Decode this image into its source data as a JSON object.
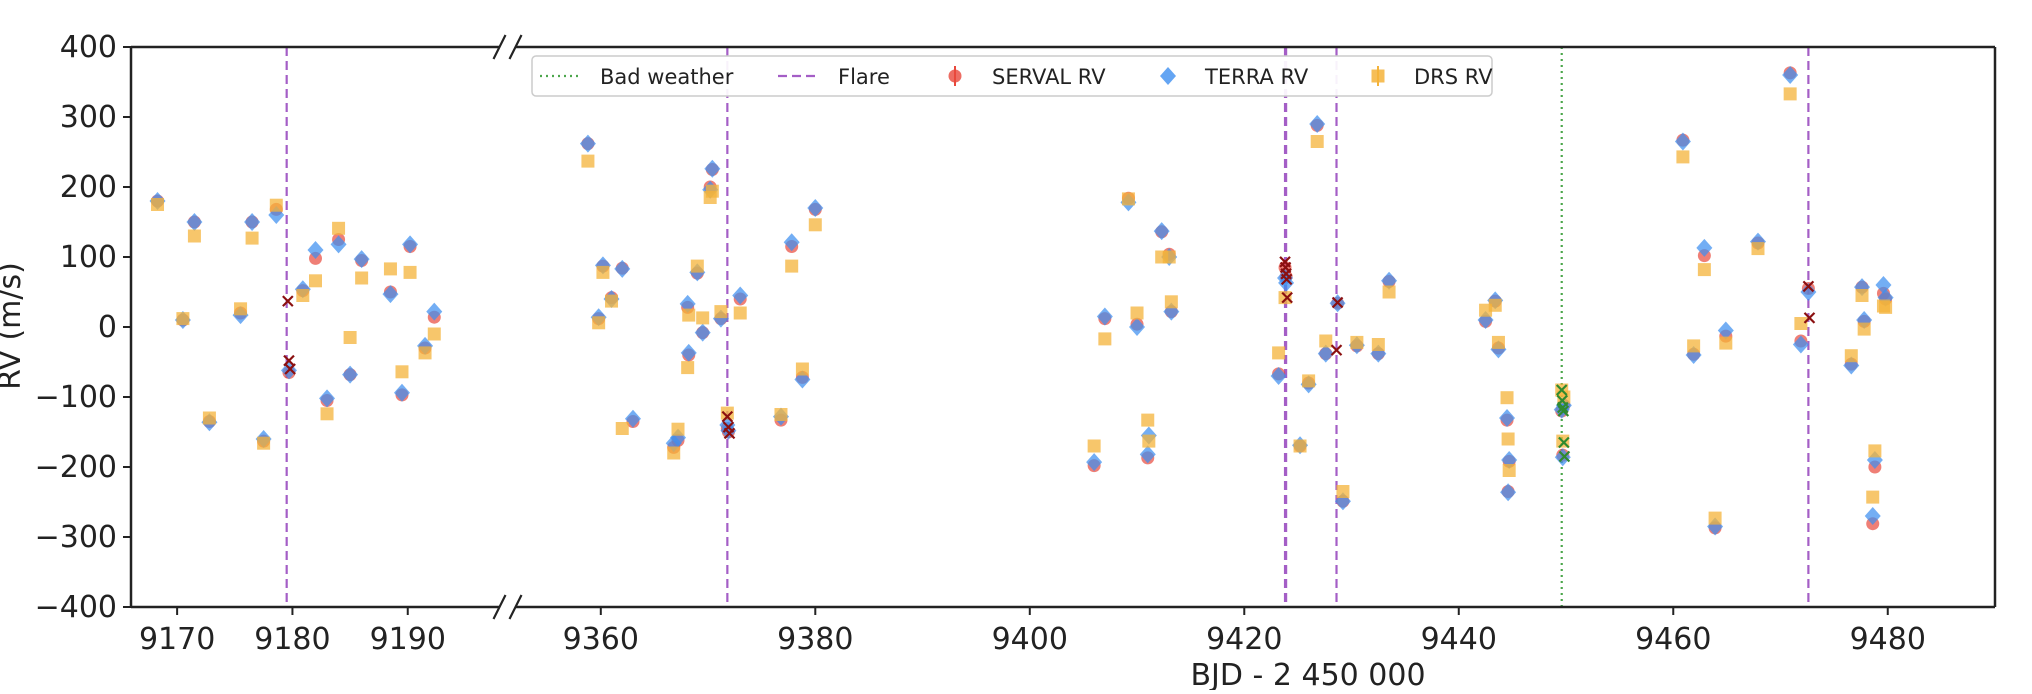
{
  "chart_data": {
    "type": "scatter",
    "xlabel": "BJD - 2 450 000",
    "ylabel": "RV (m/s)",
    "ylim": [
      -400,
      400
    ],
    "yticks": [
      -400,
      -300,
      -200,
      -100,
      0,
      100,
      200,
      300,
      400
    ],
    "ytick_labels": [
      "−400",
      "−300",
      "−200",
      "−100",
      "0",
      "100",
      "200",
      "300",
      "400"
    ],
    "broken_x_axis": true,
    "x_segments": [
      {
        "xlim": [
          9166,
          9198
        ],
        "ticks": [
          9170,
          9180,
          9190
        ]
      },
      {
        "xlim": [
          9352,
          9490
        ],
        "ticks": [
          9360,
          9380,
          9400,
          9420,
          9440,
          9460,
          9480
        ]
      }
    ],
    "legend": {
      "placement": "top-center",
      "entries": [
        {
          "label": "Bad weather",
          "style": "dotted-line",
          "color": "#4ca64c"
        },
        {
          "label": "Flare",
          "style": "dashed-line",
          "color": "#a45ec6"
        },
        {
          "label": "SERVAL RV",
          "style": "marker",
          "color": "#e8483c"
        },
        {
          "label": "TERRA RV",
          "style": "marker",
          "color": "#3d8ff0"
        },
        {
          "label": "DRS RV",
          "style": "marker",
          "color": "#f4b33a"
        }
      ]
    },
    "vlines": [
      {
        "x": 9179.5,
        "kind": "Flare"
      },
      {
        "x": 9371.8,
        "kind": "Flare"
      },
      {
        "x": 9423.8,
        "kind": "Flare"
      },
      {
        "x": 9423.9,
        "kind": "Flare"
      },
      {
        "x": 9428.6,
        "kind": "Flare"
      },
      {
        "x": 9472.6,
        "kind": "Flare"
      },
      {
        "x": 9449.6,
        "kind": "Bad weather"
      }
    ],
    "series": [
      {
        "name": "SERVAL RV",
        "color": "#e8483c",
        "points": [
          [
            9168.3,
            180
          ],
          [
            9170.5,
            10
          ],
          [
            9171.5,
            150
          ],
          [
            9172.8,
            -135
          ],
          [
            9175.5,
            20
          ],
          [
            9176.5,
            150
          ],
          [
            9177.5,
            -163
          ],
          [
            9178.6,
            168
          ],
          [
            9179.7,
            -65
          ],
          [
            9180.9,
            52
          ],
          [
            9182.0,
            98
          ],
          [
            9183.0,
            -105
          ],
          [
            9184.0,
            125
          ],
          [
            9185.0,
            -68
          ],
          [
            9186.0,
            95
          ],
          [
            9188.5,
            50
          ],
          [
            9189.5,
            -97
          ],
          [
            9190.2,
            115
          ],
          [
            9191.5,
            -30
          ],
          [
            9192.3,
            14
          ],
          [
            9358.8,
            262
          ],
          [
            9359.8,
            12
          ],
          [
            9360.2,
            87
          ],
          [
            9361.0,
            42
          ],
          [
            9362.0,
            84
          ],
          [
            9363.0,
            -135
          ],
          [
            9366.8,
            -172
          ],
          [
            9367.2,
            -162
          ],
          [
            9368.1,
            28
          ],
          [
            9368.2,
            -40
          ],
          [
            9369.0,
            77
          ],
          [
            9369.5,
            -8
          ],
          [
            9370.2,
            200
          ],
          [
            9370.4,
            225
          ],
          [
            9371.2,
            12
          ],
          [
            9371.8,
            -145
          ],
          [
            9371.9,
            -150
          ],
          [
            9373.0,
            40
          ],
          [
            9376.8,
            -133
          ],
          [
            9377.8,
            115
          ],
          [
            9378.8,
            -72
          ],
          [
            9380.0,
            168
          ],
          [
            9406.0,
            -198
          ],
          [
            9407.0,
            12
          ],
          [
            9409.2,
            184
          ],
          [
            9410.0,
            4
          ],
          [
            9411.0,
            -187
          ],
          [
            9412.3,
            136
          ],
          [
            9413.0,
            104
          ],
          [
            9413.2,
            22
          ],
          [
            9423.2,
            -67
          ],
          [
            9423.8,
            85
          ],
          [
            9423.9,
            72
          ],
          [
            9425.2,
            -170
          ],
          [
            9426.0,
            -80
          ],
          [
            9426.8,
            288
          ],
          [
            9427.6,
            -38
          ],
          [
            9428.7,
            34
          ],
          [
            9429.2,
            -249
          ],
          [
            9430.5,
            -27
          ],
          [
            9432.5,
            -38
          ],
          [
            9433.5,
            65
          ],
          [
            9442.5,
            8
          ],
          [
            9443.4,
            37
          ],
          [
            9443.7,
            -30
          ],
          [
            9444.5,
            -133
          ],
          [
            9444.6,
            -235
          ],
          [
            9444.7,
            -192
          ],
          [
            9449.6,
            -120
          ],
          [
            9449.7,
            -183
          ],
          [
            9449.8,
            -112
          ],
          [
            9460.9,
            267
          ],
          [
            9461.9,
            -39
          ],
          [
            9462.9,
            102
          ],
          [
            9463.9,
            -287
          ],
          [
            9464.9,
            -13
          ],
          [
            9467.9,
            120
          ],
          [
            9470.9,
            363
          ],
          [
            9471.9,
            -20
          ],
          [
            9472.6,
            55
          ],
          [
            9476.6,
            -53
          ],
          [
            9477.6,
            57
          ],
          [
            9477.8,
            8
          ],
          [
            9478.6,
            -281
          ],
          [
            9478.8,
            -200
          ],
          [
            9479.6,
            48
          ],
          [
            9479.8,
            40
          ]
        ]
      },
      {
        "name": "TERRA RV",
        "color": "#3d8ff0",
        "points": [
          [
            9168.3,
            180
          ],
          [
            9170.5,
            10
          ],
          [
            9171.5,
            150
          ],
          [
            9172.8,
            -136
          ],
          [
            9175.5,
            17
          ],
          [
            9176.5,
            150
          ],
          [
            9177.5,
            -160
          ],
          [
            9178.6,
            160
          ],
          [
            9179.7,
            -62
          ],
          [
            9180.9,
            54
          ],
          [
            9182.0,
            110
          ],
          [
            9183.0,
            -102
          ],
          [
            9184.0,
            118
          ],
          [
            9185.0,
            -68
          ],
          [
            9186.0,
            97
          ],
          [
            9188.5,
            47
          ],
          [
            9189.5,
            -94
          ],
          [
            9190.2,
            118
          ],
          [
            9191.5,
            -27
          ],
          [
            9192.3,
            22
          ],
          [
            9358.8,
            262
          ],
          [
            9359.8,
            14
          ],
          [
            9360.2,
            88
          ],
          [
            9361.0,
            40
          ],
          [
            9362.0,
            83
          ],
          [
            9363.0,
            -131
          ],
          [
            9366.8,
            -166
          ],
          [
            9367.2,
            -158
          ],
          [
            9368.1,
            33
          ],
          [
            9368.2,
            -37
          ],
          [
            9369.0,
            78
          ],
          [
            9369.5,
            -8
          ],
          [
            9370.2,
            196
          ],
          [
            9370.4,
            226
          ],
          [
            9371.2,
            12
          ],
          [
            9371.8,
            -140
          ],
          [
            9371.9,
            -148
          ],
          [
            9373.0,
            45
          ],
          [
            9376.8,
            -128
          ],
          [
            9377.8,
            121
          ],
          [
            9378.8,
            -75
          ],
          [
            9380.0,
            170
          ],
          [
            9406.0,
            -193
          ],
          [
            9407.0,
            15
          ],
          [
            9409.2,
            178
          ],
          [
            9410.0,
            0
          ],
          [
            9411.0,
            -182
          ],
          [
            9411.1,
            -155
          ],
          [
            9412.3,
            137
          ],
          [
            9413.0,
            100
          ],
          [
            9413.2,
            22
          ],
          [
            9423.2,
            -70
          ],
          [
            9423.8,
            70
          ],
          [
            9423.9,
            63
          ],
          [
            9425.2,
            -169
          ],
          [
            9426.0,
            -82
          ],
          [
            9426.8,
            290
          ],
          [
            9427.6,
            -38
          ],
          [
            9428.7,
            34
          ],
          [
            9429.2,
            -249
          ],
          [
            9430.5,
            -26
          ],
          [
            9432.5,
            -38
          ],
          [
            9433.5,
            66
          ],
          [
            9442.5,
            10
          ],
          [
            9443.4,
            38
          ],
          [
            9443.7,
            -32
          ],
          [
            9444.5,
            -130
          ],
          [
            9444.6,
            -236
          ],
          [
            9444.7,
            -190
          ],
          [
            9449.6,
            -118
          ],
          [
            9449.7,
            -186
          ],
          [
            9449.8,
            -112
          ],
          [
            9460.9,
            265
          ],
          [
            9461.9,
            -40
          ],
          [
            9462.9,
            113
          ],
          [
            9463.9,
            -285
          ],
          [
            9464.9,
            -5
          ],
          [
            9467.9,
            122
          ],
          [
            9470.9,
            360
          ],
          [
            9471.9,
            -25
          ],
          [
            9472.6,
            50
          ],
          [
            9476.6,
            -55
          ],
          [
            9477.6,
            57
          ],
          [
            9477.8,
            10
          ],
          [
            9478.6,
            -270
          ],
          [
            9478.8,
            -190
          ],
          [
            9479.6,
            60
          ],
          [
            9479.8,
            42
          ]
        ]
      },
      {
        "name": "DRS RV",
        "color": "#f4b33a",
        "points": [
          [
            9168.3,
            175
          ],
          [
            9170.5,
            12
          ],
          [
            9171.5,
            130
          ],
          [
            9172.8,
            -130
          ],
          [
            9175.5,
            26
          ],
          [
            9176.5,
            127
          ],
          [
            9177.5,
            -166
          ],
          [
            9178.6,
            174
          ],
          [
            9180.9,
            45
          ],
          [
            9182.0,
            66
          ],
          [
            9183.0,
            -124
          ],
          [
            9184.0,
            141
          ],
          [
            9185.0,
            -15
          ],
          [
            9186.0,
            70
          ],
          [
            9188.5,
            83
          ],
          [
            9189.5,
            -64
          ],
          [
            9190.2,
            78
          ],
          [
            9191.5,
            -37
          ],
          [
            9192.3,
            -10
          ],
          [
            9358.8,
            237
          ],
          [
            9359.8,
            6
          ],
          [
            9360.2,
            78
          ],
          [
            9361.0,
            37
          ],
          [
            9362.0,
            -145
          ],
          [
            9366.8,
            -180
          ],
          [
            9367.2,
            -146
          ],
          [
            9368.1,
            -58
          ],
          [
            9368.2,
            17
          ],
          [
            9369.0,
            87
          ],
          [
            9369.5,
            13
          ],
          [
            9370.2,
            185
          ],
          [
            9370.4,
            194
          ],
          [
            9371.2,
            22
          ],
          [
            9371.8,
            -123
          ],
          [
            9373.0,
            20
          ],
          [
            9376.8,
            -125
          ],
          [
            9377.8,
            87
          ],
          [
            9378.8,
            -60
          ],
          [
            9380.0,
            146
          ],
          [
            9406.0,
            -170
          ],
          [
            9407.0,
            -17
          ],
          [
            9409.2,
            183
          ],
          [
            9410.0,
            20
          ],
          [
            9411.0,
            -133
          ],
          [
            9411.1,
            -163
          ],
          [
            9412.3,
            100
          ],
          [
            9413.0,
            100
          ],
          [
            9413.2,
            36
          ],
          [
            9423.2,
            -37
          ],
          [
            9423.8,
            42
          ],
          [
            9425.2,
            -170
          ],
          [
            9426.0,
            -77
          ],
          [
            9426.8,
            265
          ],
          [
            9427.6,
            -20
          ],
          [
            9429.2,
            -235
          ],
          [
            9430.5,
            -22
          ],
          [
            9432.5,
            -25
          ],
          [
            9433.5,
            50
          ],
          [
            9442.5,
            24
          ],
          [
            9443.4,
            31
          ],
          [
            9443.7,
            -22
          ],
          [
            9444.5,
            -101
          ],
          [
            9444.6,
            -160
          ],
          [
            9444.7,
            -205
          ],
          [
            9449.6,
            -90
          ],
          [
            9449.7,
            -163
          ],
          [
            9449.8,
            -100
          ],
          [
            9460.9,
            243
          ],
          [
            9461.9,
            -27
          ],
          [
            9462.9,
            82
          ],
          [
            9463.9,
            -273
          ],
          [
            9464.9,
            -23
          ],
          [
            9467.9,
            112
          ],
          [
            9470.9,
            333
          ],
          [
            9471.9,
            5
          ],
          [
            9476.6,
            -41
          ],
          [
            9477.6,
            45
          ],
          [
            9477.8,
            -3
          ],
          [
            9478.6,
            -243
          ],
          [
            9478.8,
            -177
          ],
          [
            9479.6,
            30
          ],
          [
            9479.8,
            28
          ]
        ]
      },
      {
        "name": "",
        "color": "#8b1010",
        "marker": "x",
        "points": [
          [
            9179.6,
            37
          ],
          [
            9179.7,
            -48
          ],
          [
            9179.8,
            -60
          ],
          [
            9371.8,
            -128
          ],
          [
            9371.9,
            -143
          ],
          [
            9372.0,
            -152
          ],
          [
            9423.8,
            93
          ],
          [
            9423.85,
            85
          ],
          [
            9423.9,
            76
          ],
          [
            9423.95,
            68
          ],
          [
            9424.0,
            42
          ],
          [
            9428.6,
            -33
          ],
          [
            9428.7,
            35
          ],
          [
            9472.6,
            58
          ],
          [
            9472.7,
            13
          ]
        ]
      },
      {
        "name": "",
        "color": "#2f8a2f",
        "marker": "x",
        "points": [
          [
            9449.6,
            -90
          ],
          [
            9449.65,
            -105
          ],
          [
            9449.7,
            -115
          ],
          [
            9449.75,
            -120
          ],
          [
            9449.8,
            -165
          ],
          [
            9449.85,
            -185
          ]
        ]
      }
    ]
  }
}
